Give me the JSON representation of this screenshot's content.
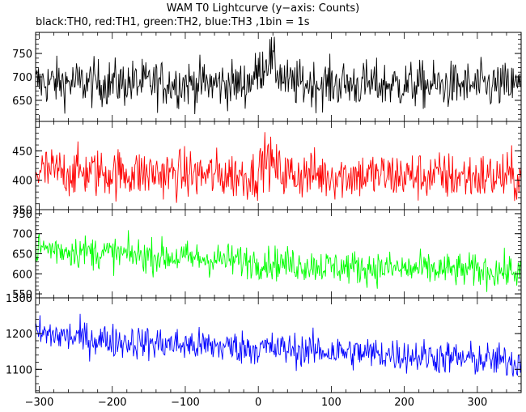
{
  "title": "WAM T0 Lightcurve (y−axis: Counts)",
  "subtitle": "black:TH0, red:TH1, green:TH2, blue:TH3 ,1bin = 1s",
  "chart_data": {
    "type": "line",
    "xlim": [
      -305,
      360
    ],
    "x_ticks": [
      "−300",
      "−200",
      "−100",
      "0",
      "100",
      "200",
      "300"
    ],
    "x_tick_values": [
      -300,
      -200,
      -100,
      0,
      100,
      200,
      300
    ],
    "panels": [
      {
        "name": "TH0",
        "color": "#000000",
        "ylim": [
          605,
          795
        ],
        "y_ticks": [
          "750",
          "700",
          "650"
        ],
        "y_tick_values": [
          750,
          700,
          650
        ],
        "profile": [
          [
            -305,
            688
          ],
          [
            -100,
            686
          ],
          [
            -20,
            684
          ],
          [
            -5,
            700
          ],
          [
            5,
            720
          ],
          [
            15,
            745
          ],
          [
            25,
            715
          ],
          [
            40,
            686
          ],
          [
            360,
            680
          ]
        ],
        "noise": 36
      },
      {
        "name": "TH1",
        "color": "#ff0000",
        "ylim": [
          350,
          500
        ],
        "y_ticks": [
          "450",
          "400",
          "350"
        ],
        "y_tick_values": [
          450,
          400,
          350
        ],
        "profile": [
          [
            -305,
            415
          ],
          [
            -100,
            410
          ],
          [
            -5,
            408
          ],
          [
            5,
            425
          ],
          [
            10,
            440
          ],
          [
            20,
            425
          ],
          [
            35,
            410
          ],
          [
            360,
            405
          ]
        ],
        "noise": 30
      },
      {
        "name": "TH2",
        "color": "#00ff00",
        "ylim": [
          540,
          760
        ],
        "y_ticks": [
          "750",
          "700",
          "650",
          "600",
          "550"
        ],
        "y_tick_values": [
          750,
          700,
          650,
          600,
          550
        ],
        "profile": [
          [
            -305,
            665
          ],
          [
            -200,
            650
          ],
          [
            -100,
            640
          ],
          [
            0,
            630
          ],
          [
            100,
            618
          ],
          [
            200,
            612
          ],
          [
            360,
            605
          ]
        ],
        "noise": 30
      },
      {
        "name": "TH3",
        "color": "#0000ff",
        "ylim": [
          1035,
          1300
        ],
        "y_ticks": [
          "1300",
          "1200",
          "1100"
        ],
        "y_tick_values": [
          1300,
          1200,
          1100
        ],
        "profile": [
          [
            -305,
            1200
          ],
          [
            -200,
            1180
          ],
          [
            -100,
            1168
          ],
          [
            0,
            1160
          ],
          [
            100,
            1150
          ],
          [
            200,
            1140
          ],
          [
            360,
            1120
          ]
        ],
        "noise": 34
      }
    ]
  }
}
